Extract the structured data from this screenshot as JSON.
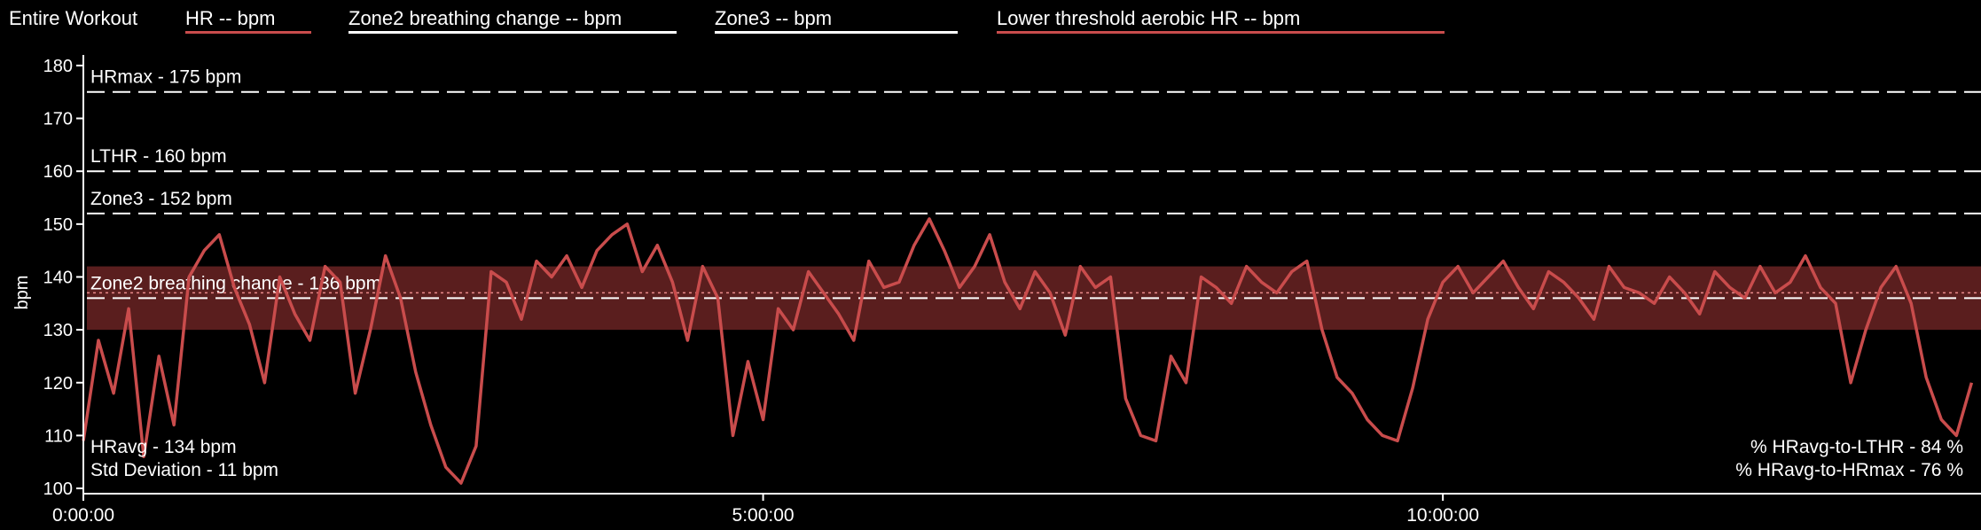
{
  "header": {
    "title": "Entire Workout",
    "legend": [
      {
        "label": "HR  -- bpm",
        "color": "#c94c4c"
      },
      {
        "label": "Zone2 breathing change  -- bpm",
        "color": "#ffffff"
      },
      {
        "label": "Zone3  -- bpm",
        "color": "#ffffff"
      },
      {
        "label": "Lower threshold aerobic HR  -- bpm",
        "color": "#c94c4c"
      }
    ]
  },
  "chart_data": {
    "type": "line",
    "ylabel": "bpm",
    "xlabel": "",
    "ylim": [
      99,
      182
    ],
    "xlim_seconds": [
      0,
      50250
    ],
    "y_ticks": [
      "100",
      "110",
      "120",
      "130",
      "140",
      "150",
      "160",
      "170",
      "180"
    ],
    "x_ticks": [
      "0:00:00",
      "5:00:00",
      "10:00:00"
    ],
    "x_tick_seconds": [
      0,
      18000,
      36000
    ],
    "reference_lines": [
      {
        "label": "HRmax - 175 bpm",
        "value": 175
      },
      {
        "label": "LTHR - 160 bpm",
        "value": 160
      },
      {
        "label": "Zone3 - 152 bpm",
        "value": 152
      },
      {
        "label": "Zone2 breathing change - 136 bpm",
        "value": 136
      }
    ],
    "band": {
      "from": 130,
      "to": 142,
      "color": "#5a1e1e"
    },
    "avg_line": 137,
    "annotations": {
      "hravg": "HRavg - 134 bpm",
      "std": "Std Deviation - 11 bpm",
      "pct_lthr": "% HRavg-to-LTHR - 84 %",
      "pct_hrmax": "% HRavg-to-HRmax - 76 %"
    },
    "series": [
      {
        "color": "#c94c4c",
        "x": [
          0,
          400,
          800,
          1200,
          1600,
          2000,
          2400,
          2800,
          3200,
          3600,
          4000,
          4400,
          4800,
          5200,
          5600,
          6000,
          6400,
          6800,
          7200,
          7600,
          8000,
          8400,
          8800,
          9200,
          9600,
          10000,
          10400,
          10800,
          11200,
          11600,
          12000,
          12400,
          12800,
          13200,
          13600,
          14000,
          14400,
          14800,
          15200,
          15600,
          16000,
          16400,
          16800,
          17200,
          17600,
          18000,
          18400,
          18800,
          19200,
          19600,
          20000,
          20400,
          20800,
          21200,
          21600,
          22000,
          22400,
          22800,
          23200,
          23600,
          24000,
          24400,
          24800,
          25200,
          25600,
          26000,
          26400,
          26800,
          27200,
          27600,
          28000,
          28400,
          28800,
          29200,
          29600,
          30000,
          30400,
          30800,
          31200,
          31600,
          32000,
          32400,
          32800,
          33200,
          33600,
          34000,
          34400,
          34800,
          35200,
          35600,
          36000,
          36400,
          36800,
          37200,
          37600,
          38000,
          38400,
          38800,
          39200,
          39600,
          40000,
          40400,
          40800,
          41200,
          41600,
          42000,
          42400,
          42800,
          43200,
          43600,
          44000,
          44400,
          44800,
          45200,
          45600,
          46000,
          46400,
          46800,
          47200,
          47600,
          48000,
          48400,
          48800,
          49200,
          49600,
          50000
        ],
        "y": [
          109,
          128,
          118,
          134,
          106,
          125,
          112,
          140,
          145,
          148,
          138,
          131,
          120,
          140,
          133,
          128,
          142,
          139,
          118,
          130,
          144,
          136,
          122,
          112,
          104,
          101,
          108,
          141,
          139,
          132,
          143,
          140,
          144,
          138,
          145,
          148,
          150,
          141,
          146,
          139,
          128,
          142,
          136,
          110,
          124,
          113,
          134,
          130,
          141,
          137,
          133,
          128,
          143,
          138,
          139,
          146,
          151,
          145,
          138,
          142,
          148,
          139,
          134,
          141,
          137,
          129,
          142,
          138,
          140,
          117,
          110,
          109,
          125,
          120,
          140,
          138,
          135,
          142,
          139,
          137,
          141,
          143,
          130,
          121,
          118,
          113,
          110,
          109,
          119,
          132,
          139,
          142,
          137,
          140,
          143,
          138,
          134,
          141,
          139,
          136,
          132,
          142,
          138,
          137,
          135,
          140,
          137,
          133,
          141,
          138,
          136,
          142,
          137,
          139,
          144,
          138,
          135,
          120,
          130,
          138,
          142,
          135,
          121,
          113,
          110,
          120
        ]
      }
    ]
  }
}
